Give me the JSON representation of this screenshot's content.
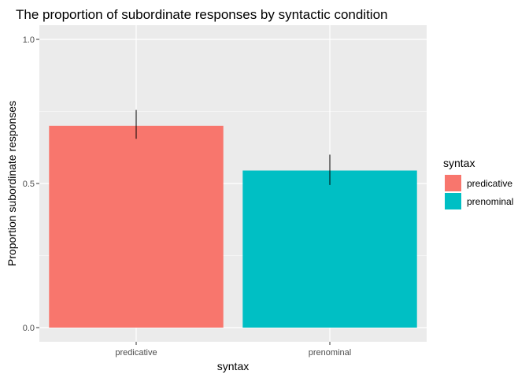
{
  "chart_data": {
    "type": "bar",
    "title": "The proportion of subordinate responses by syntactic condition",
    "xlabel": "syntax",
    "ylabel": "Proportion subordinate responses",
    "categories": [
      "predicative",
      "prenominal"
    ],
    "values": [
      0.7,
      0.545
    ],
    "error_bars": [
      {
        "low": 0.655,
        "high": 0.755
      },
      {
        "low": 0.495,
        "high": 0.6
      }
    ],
    "ylim": [
      0,
      1.0
    ],
    "y_ticks": [
      0.0,
      0.5,
      1.0
    ],
    "y_tick_labels": [
      "0.0",
      "0.5",
      "1.0"
    ],
    "grid": true,
    "legend": {
      "title": "syntax",
      "position": "right",
      "entries": [
        "predicative",
        "prenominal"
      ]
    },
    "colors": [
      "#F8766D",
      "#00BFC4"
    ],
    "panel_background": "#EBEBEB",
    "grid_color": "#FFFFFF"
  }
}
